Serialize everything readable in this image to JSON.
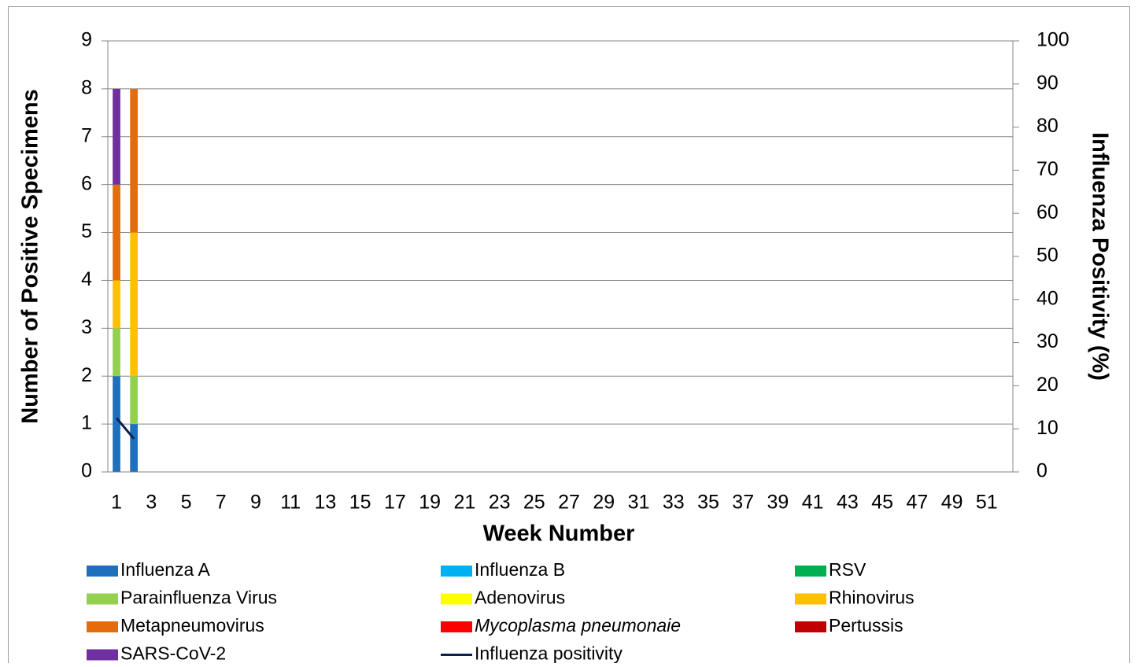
{
  "chart_data": {
    "type": "bar",
    "stacked": true,
    "x_label": "Week Number",
    "y_label": "Number of Positive Specimens",
    "y2_label": "Influenza Positivity (%)",
    "categories": [
      1,
      null,
      3,
      null,
      5,
      null,
      7,
      null,
      9,
      null,
      11,
      null,
      13,
      null,
      15,
      null,
      17,
      null,
      19,
      null,
      21,
      null,
      23,
      null,
      25,
      null,
      27,
      null,
      29,
      null,
      31,
      null,
      33,
      null,
      35,
      null,
      37,
      null,
      39,
      null,
      41,
      null,
      43,
      null,
      45,
      null,
      47,
      null,
      49,
      null,
      51,
      null
    ],
    "ylim": [
      0,
      9
    ],
    "yticks": [
      0,
      1,
      2,
      3,
      4,
      5,
      6,
      7,
      8,
      9
    ],
    "y2lim": [
      0,
      100
    ],
    "y2ticks": [
      0,
      10,
      20,
      30,
      40,
      50,
      60,
      70,
      80,
      90,
      100
    ],
    "grid": true,
    "series": [
      {
        "name": "Influenza A",
        "color": "#1f6fbf",
        "values": [
          2,
          1,
          null,
          null,
          null,
          null,
          null,
          null,
          null,
          null,
          null,
          null,
          null,
          null,
          null,
          null,
          null,
          null,
          null,
          null,
          null,
          null,
          null,
          null,
          null,
          null,
          null,
          null,
          null,
          null,
          null,
          null,
          null,
          null,
          null,
          null,
          null,
          null,
          null,
          null,
          null,
          null,
          null,
          null,
          null,
          null,
          null,
          null,
          null,
          null,
          null,
          null
        ]
      },
      {
        "name": "Influenza B",
        "color": "#00b0f0",
        "values": [
          0,
          0,
          null,
          null,
          null,
          null,
          null,
          null,
          null,
          null,
          null,
          null,
          null,
          null,
          null,
          null,
          null,
          null,
          null,
          null,
          null,
          null,
          null,
          null,
          null,
          null,
          null,
          null,
          null,
          null,
          null,
          null,
          null,
          null,
          null,
          null,
          null,
          null,
          null,
          null,
          null,
          null,
          null,
          null,
          null,
          null,
          null,
          null,
          null,
          null,
          null,
          null
        ]
      },
      {
        "name": "RSV",
        "color": "#00b050",
        "values": [
          0,
          0,
          null,
          null,
          null,
          null,
          null,
          null,
          null,
          null,
          null,
          null,
          null,
          null,
          null,
          null,
          null,
          null,
          null,
          null,
          null,
          null,
          null,
          null,
          null,
          null,
          null,
          null,
          null,
          null,
          null,
          null,
          null,
          null,
          null,
          null,
          null,
          null,
          null,
          null,
          null,
          null,
          null,
          null,
          null,
          null,
          null,
          null,
          null,
          null,
          null,
          null
        ]
      },
      {
        "name": "Parainfluenza Virus",
        "color": "#92d050",
        "values": [
          1,
          1,
          null,
          null,
          null,
          null,
          null,
          null,
          null,
          null,
          null,
          null,
          null,
          null,
          null,
          null,
          null,
          null,
          null,
          null,
          null,
          null,
          null,
          null,
          null,
          null,
          null,
          null,
          null,
          null,
          null,
          null,
          null,
          null,
          null,
          null,
          null,
          null,
          null,
          null,
          null,
          null,
          null,
          null,
          null,
          null,
          null,
          null,
          null,
          null,
          null,
          null
        ]
      },
      {
        "name": "Adenovirus",
        "color": "#ffff00",
        "values": [
          0,
          0,
          null,
          null,
          null,
          null,
          null,
          null,
          null,
          null,
          null,
          null,
          null,
          null,
          null,
          null,
          null,
          null,
          null,
          null,
          null,
          null,
          null,
          null,
          null,
          null,
          null,
          null,
          null,
          null,
          null,
          null,
          null,
          null,
          null,
          null,
          null,
          null,
          null,
          null,
          null,
          null,
          null,
          null,
          null,
          null,
          null,
          null,
          null,
          null,
          null,
          null
        ]
      },
      {
        "name": "Rhinovirus",
        "color": "#ffc000",
        "values": [
          1,
          3,
          null,
          null,
          null,
          null,
          null,
          null,
          null,
          null,
          null,
          null,
          null,
          null,
          null,
          null,
          null,
          null,
          null,
          null,
          null,
          null,
          null,
          null,
          null,
          null,
          null,
          null,
          null,
          null,
          null,
          null,
          null,
          null,
          null,
          null,
          null,
          null,
          null,
          null,
          null,
          null,
          null,
          null,
          null,
          null,
          null,
          null,
          null,
          null,
          null,
          null
        ]
      },
      {
        "name": "Metapneumovirus",
        "color": "#e46c0a",
        "values": [
          2,
          3,
          null,
          null,
          null,
          null,
          null,
          null,
          null,
          null,
          null,
          null,
          null,
          null,
          null,
          null,
          null,
          null,
          null,
          null,
          null,
          null,
          null,
          null,
          null,
          null,
          null,
          null,
          null,
          null,
          null,
          null,
          null,
          null,
          null,
          null,
          null,
          null,
          null,
          null,
          null,
          null,
          null,
          null,
          null,
          null,
          null,
          null,
          null,
          null,
          null,
          null
        ]
      },
      {
        "name": "Mycoplasma pneumonaie",
        "color": "#ff0000",
        "values": [
          0,
          0,
          null,
          null,
          null,
          null,
          null,
          null,
          null,
          null,
          null,
          null,
          null,
          null,
          null,
          null,
          null,
          null,
          null,
          null,
          null,
          null,
          null,
          null,
          null,
          null,
          null,
          null,
          null,
          null,
          null,
          null,
          null,
          null,
          null,
          null,
          null,
          null,
          null,
          null,
          null,
          null,
          null,
          null,
          null,
          null,
          null,
          null,
          null,
          null,
          null,
          null
        ]
      },
      {
        "name": "Pertussis",
        "color": "#c00000",
        "values": [
          0,
          0,
          null,
          null,
          null,
          null,
          null,
          null,
          null,
          null,
          null,
          null,
          null,
          null,
          null,
          null,
          null,
          null,
          null,
          null,
          null,
          null,
          null,
          null,
          null,
          null,
          null,
          null,
          null,
          null,
          null,
          null,
          null,
          null,
          null,
          null,
          null,
          null,
          null,
          null,
          null,
          null,
          null,
          null,
          null,
          null,
          null,
          null,
          null,
          null,
          null,
          null
        ]
      },
      {
        "name": "SARS-CoV-2",
        "color": "#7030a0",
        "values": [
          2,
          0,
          null,
          null,
          null,
          null,
          null,
          null,
          null,
          null,
          null,
          null,
          null,
          null,
          null,
          null,
          null,
          null,
          null,
          null,
          null,
          null,
          null,
          null,
          null,
          null,
          null,
          null,
          null,
          null,
          null,
          null,
          null,
          null,
          null,
          null,
          null,
          null,
          null,
          null,
          null,
          null,
          null,
          null,
          null,
          null,
          null,
          null,
          null,
          null,
          null,
          null
        ]
      },
      {
        "name": "Influenza positivity",
        "color": "#0f1f4f",
        "type": "line",
        "axis": "y2",
        "values": [
          12.5,
          7.7,
          null,
          null,
          null,
          null,
          null,
          null,
          null,
          null,
          null,
          null,
          null,
          null,
          null,
          null,
          null,
          null,
          null,
          null,
          null,
          null,
          null,
          null,
          null,
          null,
          null,
          null,
          null,
          null,
          null,
          null,
          null,
          null,
          null,
          null,
          null,
          null,
          null,
          null,
          null,
          null,
          null,
          null,
          null,
          null,
          null,
          null,
          null,
          null,
          null,
          null
        ]
      }
    ]
  }
}
